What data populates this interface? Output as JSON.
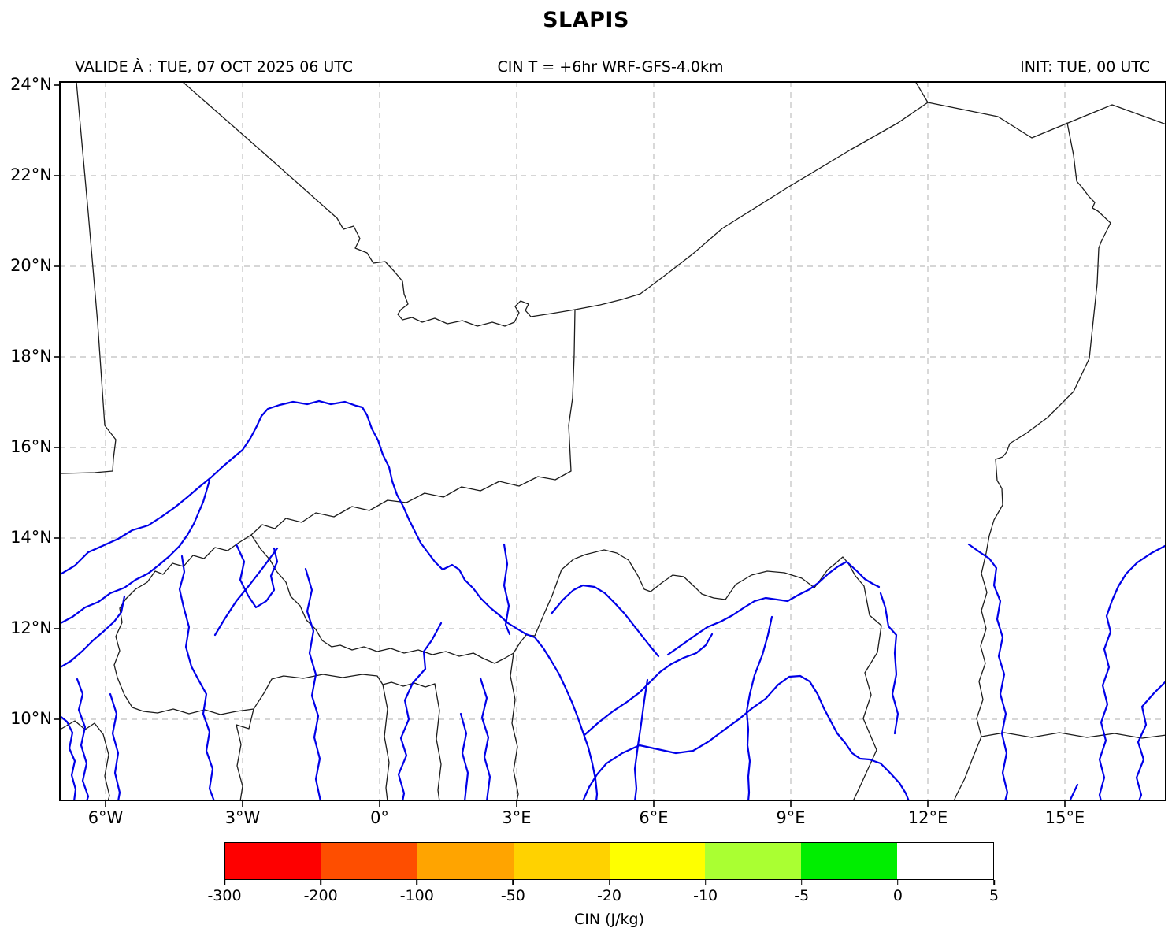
{
  "title": "SLAPIS",
  "header": {
    "left": "VALIDE À : TUE, 07 OCT 2025 06 UTC",
    "center": "CIN T = +6hr WRF-GFS-4.0km",
    "right": "INIT: TUE, 00 UTC"
  },
  "map": {
    "x_ticks": [
      "6°W",
      "3°W",
      "0°",
      "3°E",
      "6°E",
      "9°E",
      "12°E",
      "15°E"
    ],
    "y_ticks": [
      "24°N",
      "22°N",
      "20°N",
      "18°N",
      "16°N",
      "14°N",
      "12°N",
      "10°N"
    ],
    "border_color": "#1c1c1c",
    "river_color": "#0000e8",
    "grid_color": "#c9c9c9",
    "frame_color": "#000000"
  },
  "colorbar": {
    "label": "CIN (J/kg)",
    "ticks": [
      "-300",
      "-200",
      "-100",
      "-50",
      "-20",
      "-10",
      "-5",
      "0",
      "5"
    ],
    "colors": [
      "#fe0000",
      "#fe4e00",
      "#ffa400",
      "#ffd200",
      "#feff00",
      "#aaff32",
      "#00ee00",
      "#ffffff"
    ]
  },
  "chart_data": {
    "type": "map",
    "title": "SLAPIS",
    "valid_time": "TUE, 07 OCT 2025 06 UTC",
    "forecast_label": "CIN T = +6hr WRF-GFS-4.0km",
    "init_time": "TUE, 00 UTC",
    "lon_axis": {
      "ticks": [
        "6°W",
        "3°W",
        "0°",
        "3°E",
        "6°E",
        "9°E",
        "12°E",
        "15°E"
      ],
      "range_deg": [
        -7,
        17.2
      ]
    },
    "lat_axis": {
      "ticks": [
        "24°N",
        "22°N",
        "20°N",
        "18°N",
        "16°N",
        "14°N",
        "12°N",
        "10°N"
      ],
      "range_deg": [
        8.2,
        24
      ]
    },
    "grid": "dashed",
    "layers": [
      "country-borders",
      "rivers"
    ],
    "colorbar": {
      "label": "CIN (J/kg)",
      "levels": [
        -300,
        -200,
        -100,
        -50,
        -20,
        -10,
        -5,
        0,
        5
      ],
      "colors": [
        "#fe0000",
        "#fe4e00",
        "#ffa400",
        "#ffd200",
        "#feff00",
        "#aaff32",
        "#00ee00",
        "#ffffff"
      ],
      "orientation": "horizontal"
    }
  }
}
